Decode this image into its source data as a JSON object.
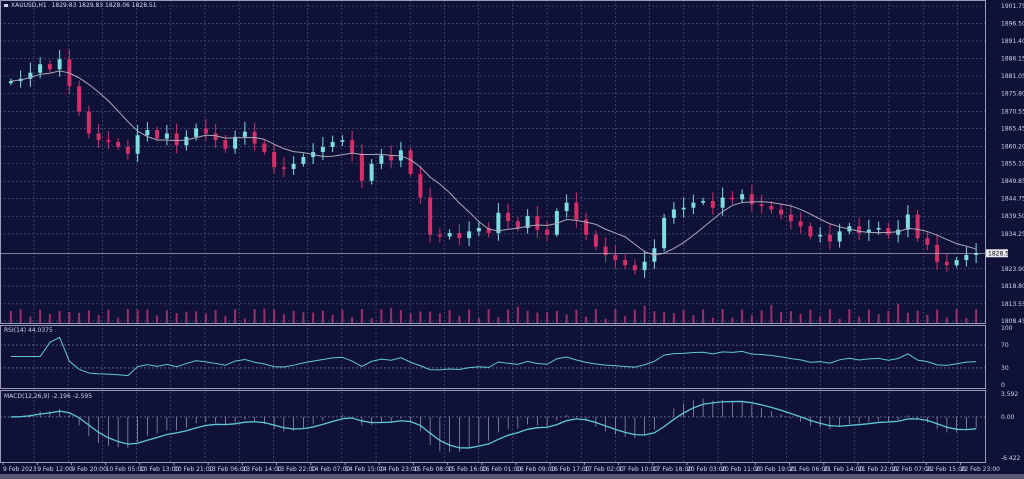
{
  "header": {
    "symbol": "XAUUSD,H1",
    "ohlc": "1829.83 1829.83 1828.06 1828.51"
  },
  "rsi_label": "RSI(14) 44.0375",
  "macd_label": "MACD(12,26,9) -2.196 -2.595",
  "colors": {
    "background": "#0f1136",
    "bull": "#7fdde0",
    "bear": "#d3306a",
    "ma": "#a9a9b8",
    "indicator": "#5fc8d8",
    "volume": "#9a2f6a",
    "grid": "#5a5e86"
  },
  "chart_data": [
    {
      "type": "candlestick",
      "title": "",
      "price_axis_ticks": [
        "1901.75",
        "1896.50",
        "1891.40",
        "1886.15",
        "1881.05",
        "1875.80",
        "1870.55",
        "1865.45",
        "1860.20",
        "1855.10",
        "1849.85",
        "1844.75",
        "1839.50",
        "1834.25",
        "1823.90",
        "1818.80",
        "1813.55",
        "1808.45"
      ],
      "ylim": [
        1808.45,
        1901.75
      ],
      "current_price": "1828.51",
      "moving_average": true,
      "volume_bars": true,
      "grid": true,
      "closes": [
        1879.5,
        1880.2,
        1882.0,
        1884.5,
        1883.0,
        1886.0,
        1878.0,
        1870.5,
        1864.0,
        1862.0,
        1861.5,
        1860.0,
        1858.0,
        1863.5,
        1865.0,
        1862.5,
        1864.0,
        1860.5,
        1863.0,
        1865.5,
        1864.0,
        1862.0,
        1859.5,
        1863.0,
        1864.5,
        1861.0,
        1858.5,
        1854.0,
        1853.5,
        1855.0,
        1857.0,
        1858.5,
        1860.0,
        1861.5,
        1862.0,
        1858.0,
        1850.0,
        1855.0,
        1857.5,
        1856.0,
        1859.0,
        1852.0,
        1845.0,
        1834.0,
        1833.5,
        1834.5,
        1833.0,
        1835.0,
        1836.0,
        1834.5,
        1840.5,
        1838.0,
        1836.0,
        1839.5,
        1835.5,
        1834.0,
        1841.0,
        1843.5,
        1838.5,
        1834.0,
        1830.5,
        1828.0,
        1826.5,
        1825.0,
        1823.5,
        1826.0,
        1830.0,
        1839.0,
        1841.5,
        1842.0,
        1843.5,
        1844.0,
        1842.0,
        1845.0,
        1844.5,
        1846.0,
        1843.0,
        1842.5,
        1841.5,
        1840.0,
        1838.0,
        1836.5,
        1833.5,
        1834.0,
        1832.0,
        1835.0,
        1836.5,
        1834.5,
        1835.5,
        1836.0,
        1834.0,
        1835.5,
        1840.0,
        1833.0,
        1831.0,
        1826.0,
        1825.0,
        1826.5,
        1828.0,
        1828.51
      ],
      "time_labels": [
        "9 Feb 2023",
        "9 Feb 12:00",
        "9 Feb 20:00",
        "10 Feb 05:00",
        "10 Feb 13:00",
        "10 Feb 21:00",
        "13 Feb 06:00",
        "13 Feb 14:00",
        "13 Feb 22:00",
        "14 Feb 07:00",
        "14 Feb 15:00",
        "14 Feb 23:00",
        "15 Feb 08:00",
        "15 Feb 16:00",
        "16 Feb 01:00",
        "16 Feb 09:00",
        "16 Feb 17:00",
        "17 Feb 02:00",
        "17 Feb 10:00",
        "17 Feb 18:00",
        "20 Feb 03:00",
        "20 Feb 11:00",
        "20 Feb 19:00",
        "21 Feb 06:00",
        "21 Feb 14:00",
        "21 Feb 22:00",
        "22 Feb 07:00",
        "22 Feb 15:00",
        "22 Feb 23:00"
      ]
    },
    {
      "type": "line",
      "name": "RSI(14)",
      "axis_ticks": [
        "100",
        "70",
        "30",
        "0"
      ],
      "ylim": [
        0,
        100
      ],
      "levels": [
        70,
        30
      ]
    },
    {
      "type": "bar+line",
      "name": "MACD(12,26,9)",
      "axis_ticks": [
        "3.592",
        "0.00",
        "-6.422"
      ],
      "ylim": [
        -6.422,
        3.592
      ]
    }
  ]
}
